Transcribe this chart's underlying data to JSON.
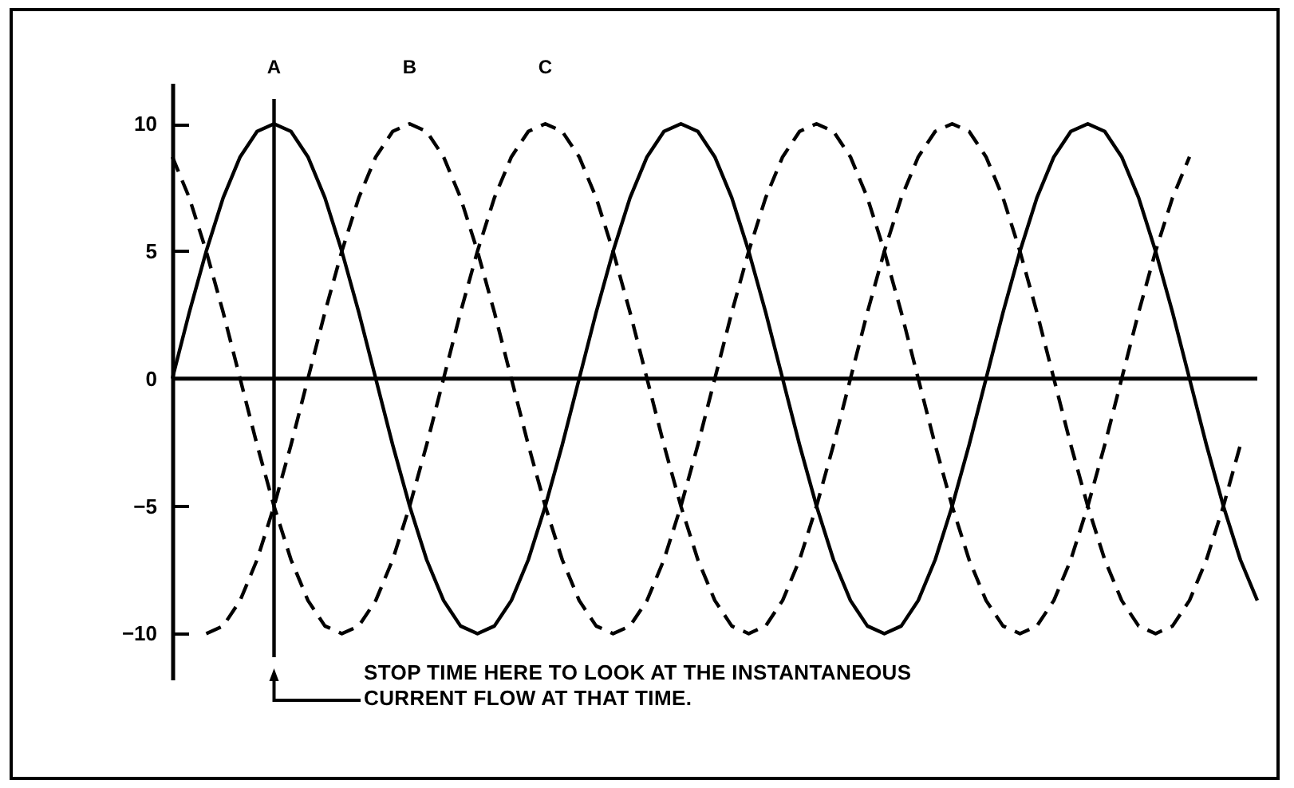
{
  "chart_data": {
    "type": "line",
    "categories": [
      null,
      null,
      null,
      null,
      null,
      null,
      null,
      null,
      null,
      null,
      null,
      null,
      null,
      null,
      null,
      null,
      null,
      null,
      null,
      null,
      null,
      null,
      null,
      null,
      null,
      null,
      null,
      null,
      null,
      null,
      null,
      null,
      null,
      null,
      null,
      null,
      null,
      null,
      null,
      null,
      null,
      null,
      null,
      null,
      null,
      null,
      null,
      null,
      null,
      null,
      null,
      null,
      null,
      null,
      null,
      null,
      null,
      null,
      null,
      null,
      null,
      null,
      null,
      null,
      null
    ],
    "ylim": [
      -11.8,
      11.6
    ],
    "yticks": [
      -10,
      -5,
      0,
      5,
      10
    ],
    "grid": false,
    "legend": false,
    "ref_lines": [
      {
        "axis": "y",
        "value": 0
      }
    ],
    "annotations": [
      "STOP TIME HERE TO LOOK AT THE INSTANTANEOUS CURRENT FLOW AT THAT TIME."
    ],
    "series": [
      {
        "name": "A",
        "color": "#000000",
        "line_style": "solid",
        "values": [
          0,
          2.6,
          5,
          7.1,
          8.7,
          9.7,
          10,
          9.7,
          8.7,
          7.1,
          5,
          2.6,
          0,
          -2.6,
          -5,
          -7.1,
          -8.7,
          -9.7,
          -10,
          -9.7,
          -8.7,
          -7.1,
          -5,
          -2.6,
          0,
          2.6,
          5,
          7.1,
          8.7,
          9.7,
          10,
          9.7,
          8.7,
          7.1,
          5,
          2.6,
          0,
          -2.6,
          -5,
          -7.1,
          -8.7,
          -9.7,
          -10,
          -9.7,
          -8.7,
          -7.1,
          -5,
          -2.6,
          0,
          2.6,
          5,
          7.1,
          8.7,
          9.7,
          10,
          9.7,
          8.7,
          7.1,
          5,
          2.6,
          0,
          -2.6,
          -5,
          -7.1,
          -8.7
        ]
      },
      {
        "name": "B",
        "color": "#000000",
        "line_style": "dashed",
        "values": [
          null,
          null,
          -10,
          -9.7,
          -8.7,
          -7.1,
          -5,
          -2.6,
          0,
          2.6,
          5,
          7.1,
          8.7,
          9.7,
          10,
          9.7,
          8.7,
          7.1,
          5,
          2.6,
          0,
          -2.6,
          -5,
          -7.1,
          -8.7,
          -9.7,
          -10,
          -9.7,
          -8.7,
          -7.1,
          -5,
          -2.6,
          0,
          2.6,
          5,
          7.1,
          8.7,
          9.7,
          10,
          9.7,
          8.7,
          7.1,
          5,
          2.6,
          0,
          -2.6,
          -5,
          -7.1,
          -8.7,
          -9.7,
          -10,
          -9.7,
          -8.7,
          -7.1,
          -5,
          -2.6,
          0,
          2.6,
          5,
          7.1,
          8.7,
          null,
          null,
          null,
          null
        ]
      },
      {
        "name": "C",
        "color": "#000000",
        "line_style": "dashed",
        "values": [
          8.7,
          7.1,
          5,
          2.6,
          0,
          -2.6,
          -5,
          -7.1,
          -8.7,
          -9.7,
          -10,
          -9.7,
          -8.7,
          -7.1,
          -5,
          -2.6,
          0,
          2.6,
          5,
          7.1,
          8.7,
          9.7,
          10,
          9.7,
          8.7,
          7.1,
          5,
          2.6,
          0,
          -2.6,
          -5,
          -7.1,
          -8.7,
          -9.7,
          -10,
          -9.7,
          -8.7,
          -7.1,
          -5,
          -2.6,
          0,
          2.6,
          5,
          7.1,
          8.7,
          9.7,
          10,
          9.7,
          8.7,
          7.1,
          5,
          2.6,
          0,
          -2.6,
          -5,
          -7.1,
          -8.7,
          -9.7,
          -10,
          -9.7,
          -8.7,
          -7.1,
          -5,
          -2.6,
          null
        ]
      }
    ]
  }
}
